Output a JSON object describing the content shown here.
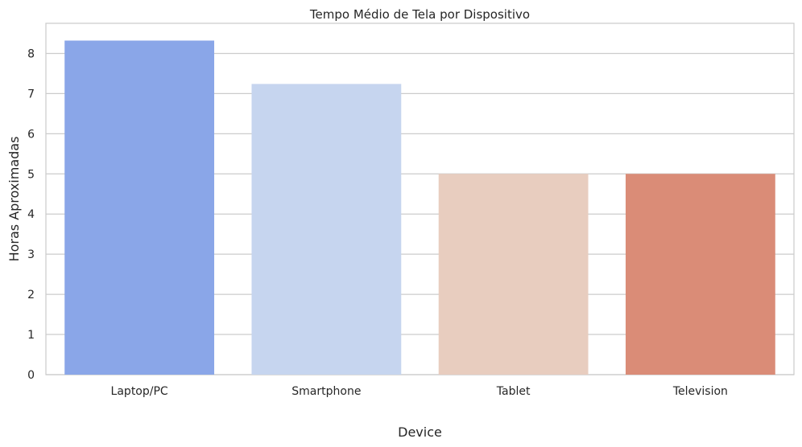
{
  "chart_data": {
    "type": "bar",
    "title": "Tempo Médio de Tela por Dispositivo",
    "xlabel": "Device",
    "ylabel": "Horas Aproximadas",
    "categories": [
      "Laptop/PC",
      "Smartphone",
      "Tablet",
      "Television"
    ],
    "values": [
      8.32,
      7.24,
      5.0,
      5.0
    ],
    "bar_colors": [
      "#8aa6e8",
      "#c6d5ef",
      "#e8cdbf",
      "#da8c77"
    ],
    "ylim": [
      0,
      8.75
    ],
    "yticks": [
      0,
      1,
      2,
      3,
      4,
      5,
      6,
      7,
      8
    ],
    "grid": true,
    "grid_axis": "y",
    "legend": false
  }
}
